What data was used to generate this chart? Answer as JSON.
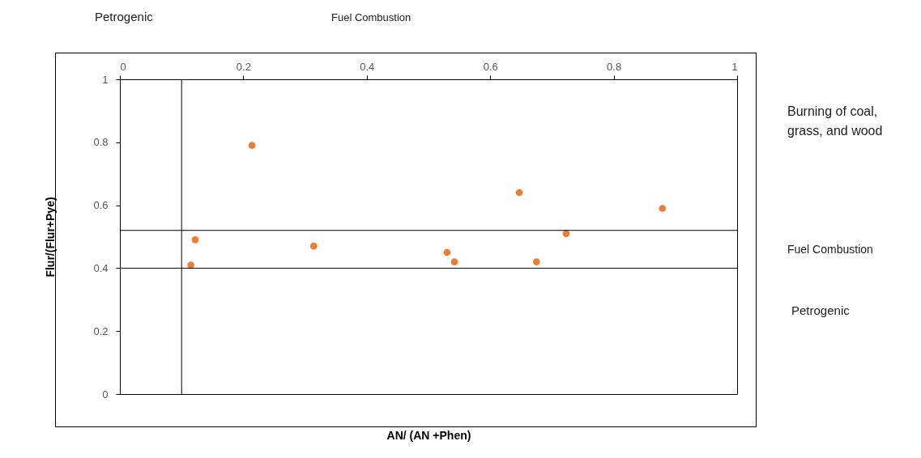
{
  "chart_data": {
    "type": "scatter",
    "xlabel": "AN/ (AN +Phen)",
    "ylabel": "Flur/(Flur+Pye)",
    "x": [
      0.115,
      0.122,
      0.214,
      0.314,
      0.53,
      0.542,
      0.647,
      0.675,
      0.723,
      0.879
    ],
    "series": [
      {
        "color": "#ed7d31",
        "values": [
          0.41,
          0.49,
          0.79,
          0.47,
          0.45,
          0.42,
          0.64,
          0.42,
          0.51,
          0.59
        ]
      }
    ],
    "xlim": [
      0,
      1
    ],
    "xticks": [
      0,
      0.2,
      0.4,
      0.6,
      0.8,
      1
    ],
    "ylim": [
      0,
      1
    ],
    "yticks": [
      0,
      0.2,
      0.4,
      0.6,
      0.8,
      1
    ],
    "grid": false,
    "marker": "circle",
    "ref_lines": [
      {
        "axis": "x",
        "value": 0.1,
        "color": "#000000"
      },
      {
        "axis": "y",
        "value": 0.52,
        "color": "#000000"
      },
      {
        "axis": "y",
        "value": 0.4,
        "color": "#000000"
      }
    ],
    "annotations": [
      "Petrogenic",
      "Fuel Combustion",
      "Burning of coal, grass, and wood",
      "Fuel Combustion",
      "Petrogenic"
    ]
  }
}
